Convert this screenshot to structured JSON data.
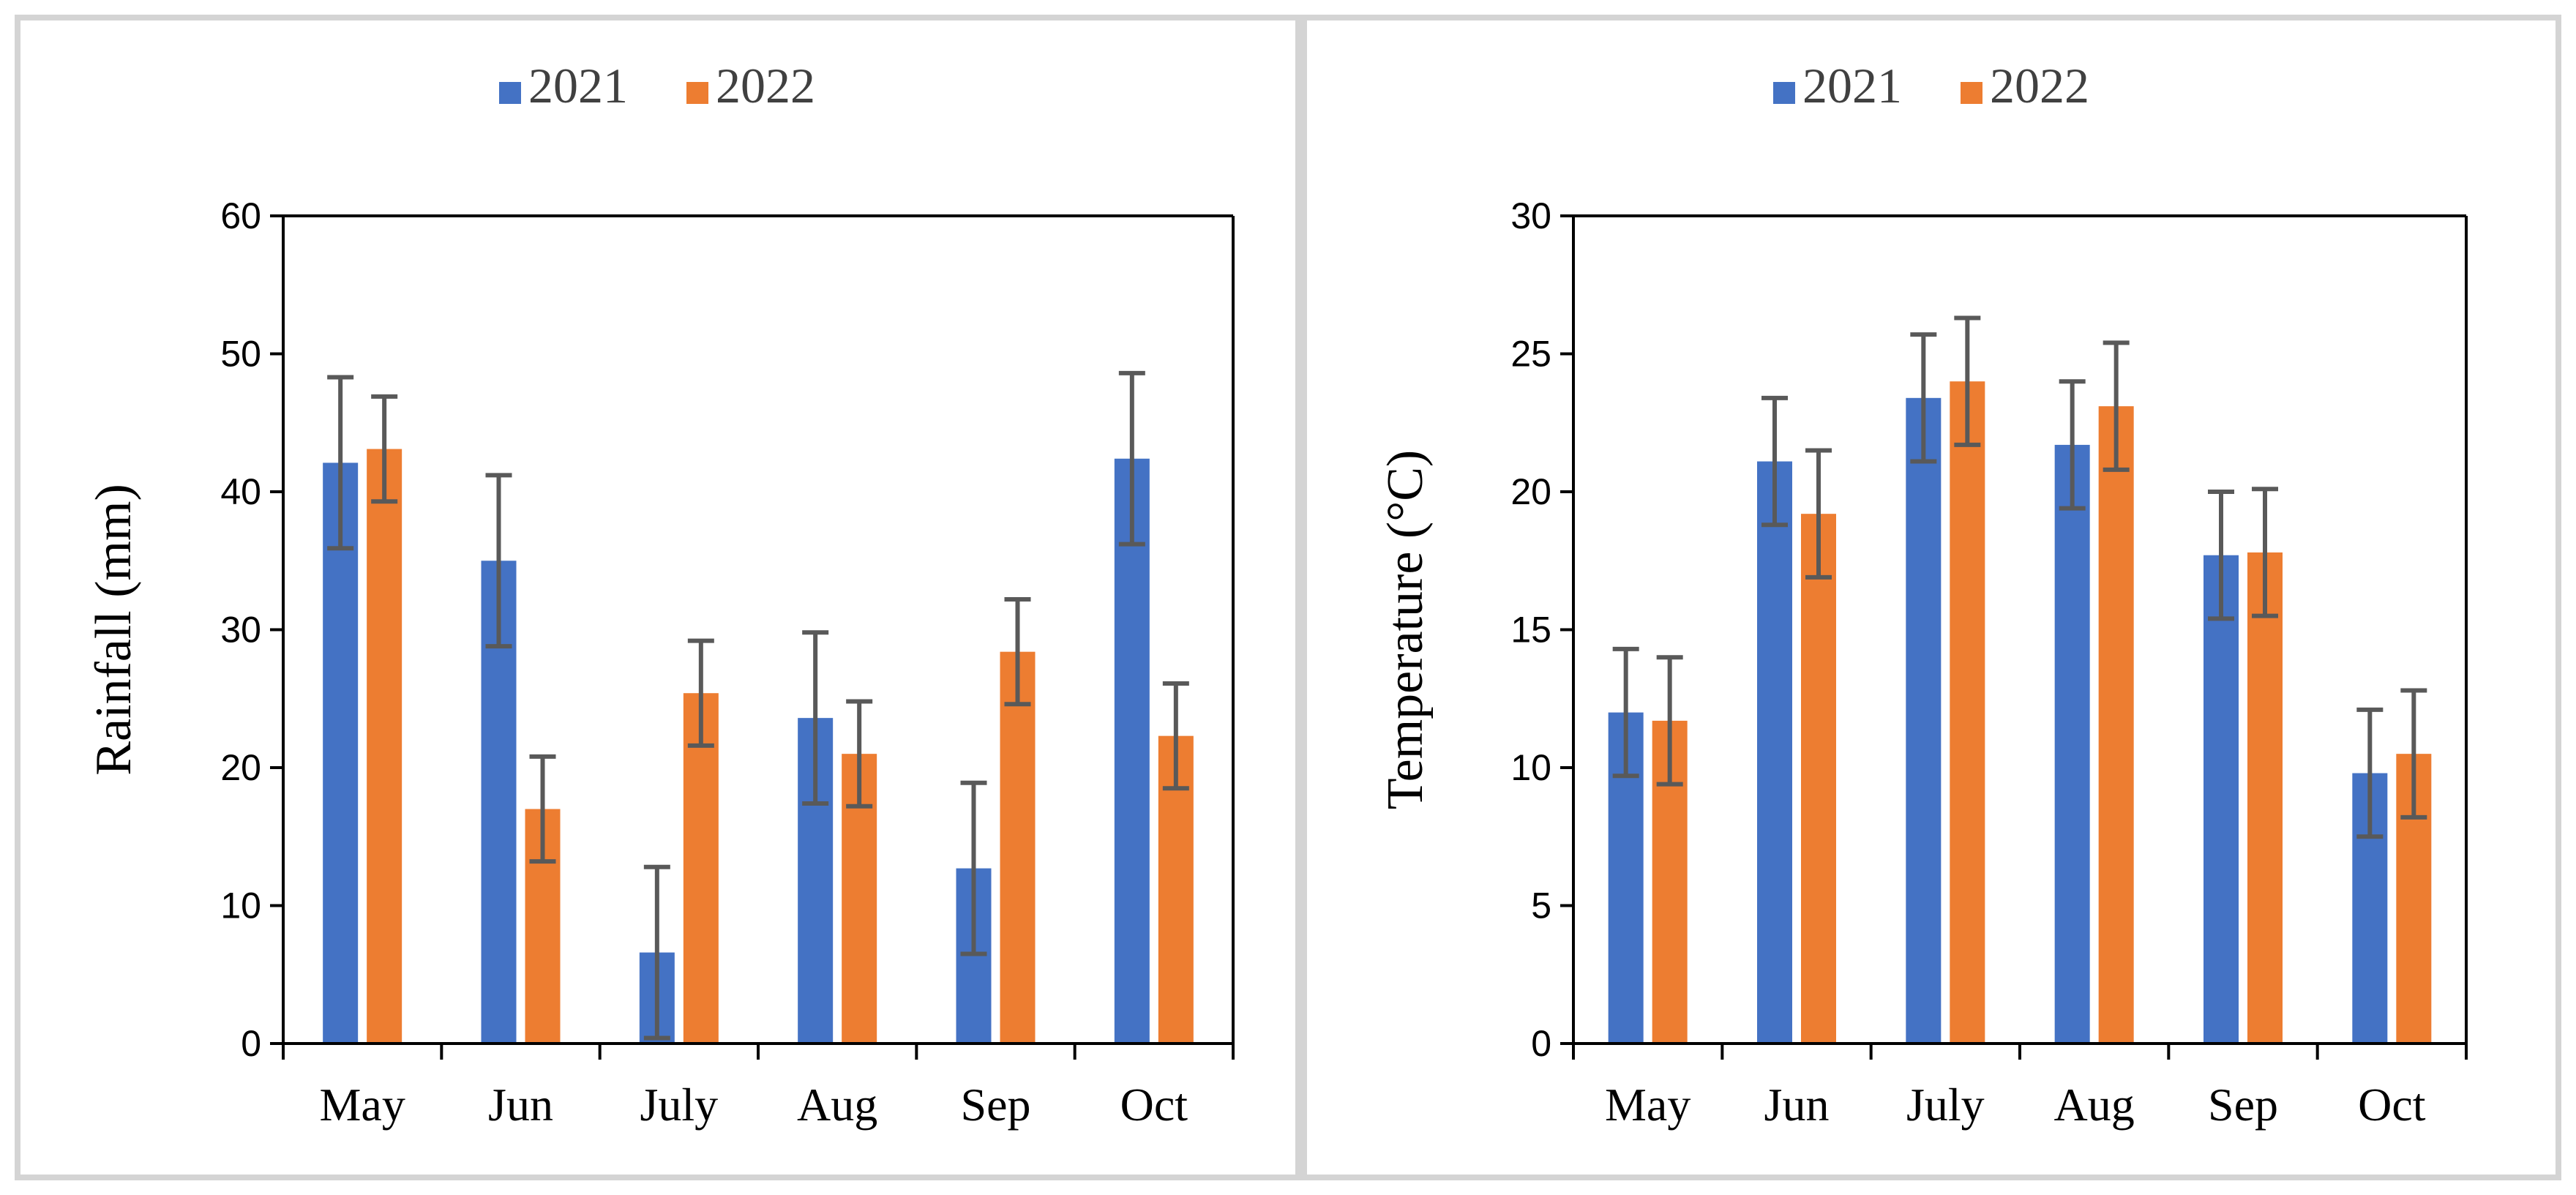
{
  "chart_data": [
    {
      "type": "bar",
      "categories": [
        "May",
        "Jun",
        "July",
        "Aug",
        "Sep",
        "Oct"
      ],
      "series": [
        {
          "name": "2021",
          "color": "#4472c4",
          "values": [
            42.1,
            35.0,
            6.6,
            23.6,
            12.7,
            42.4
          ],
          "errors": [
            6.2,
            6.2,
            6.2,
            6.2,
            6.2,
            6.2
          ]
        },
        {
          "name": "2022",
          "color": "#ed7d31",
          "values": [
            43.1,
            17.0,
            25.4,
            21.0,
            28.4,
            22.3
          ],
          "errors": [
            3.8,
            3.8,
            3.8,
            3.8,
            3.8,
            3.8
          ]
        }
      ],
      "ylabel": "Rainfall (mm)",
      "ylim": [
        0,
        60
      ],
      "yticks": [
        "0",
        "10",
        "20",
        "30",
        "40",
        "50",
        "60"
      ],
      "legend_position": "top",
      "grid": false
    },
    {
      "type": "bar",
      "categories": [
        "May",
        "Jun",
        "July",
        "Aug",
        "Sep",
        "Oct"
      ],
      "series": [
        {
          "name": "2021",
          "color": "#4472c4",
          "values": [
            12.0,
            21.1,
            23.4,
            21.7,
            17.7,
            9.8
          ],
          "errors": [
            2.3,
            2.3,
            2.3,
            2.3,
            2.3,
            2.3
          ]
        },
        {
          "name": "2022",
          "color": "#ed7d31",
          "values": [
            11.7,
            19.2,
            24.0,
            23.1,
            17.8,
            10.5
          ],
          "errors": [
            2.3,
            2.3,
            2.3,
            2.3,
            2.3,
            2.3
          ]
        }
      ],
      "ylabel": "Temperature (°C)",
      "ylim": [
        0,
        30
      ],
      "yticks": [
        "0",
        "5",
        "10",
        "15",
        "20",
        "25",
        "30"
      ],
      "legend_position": "top",
      "grid": false
    }
  ]
}
